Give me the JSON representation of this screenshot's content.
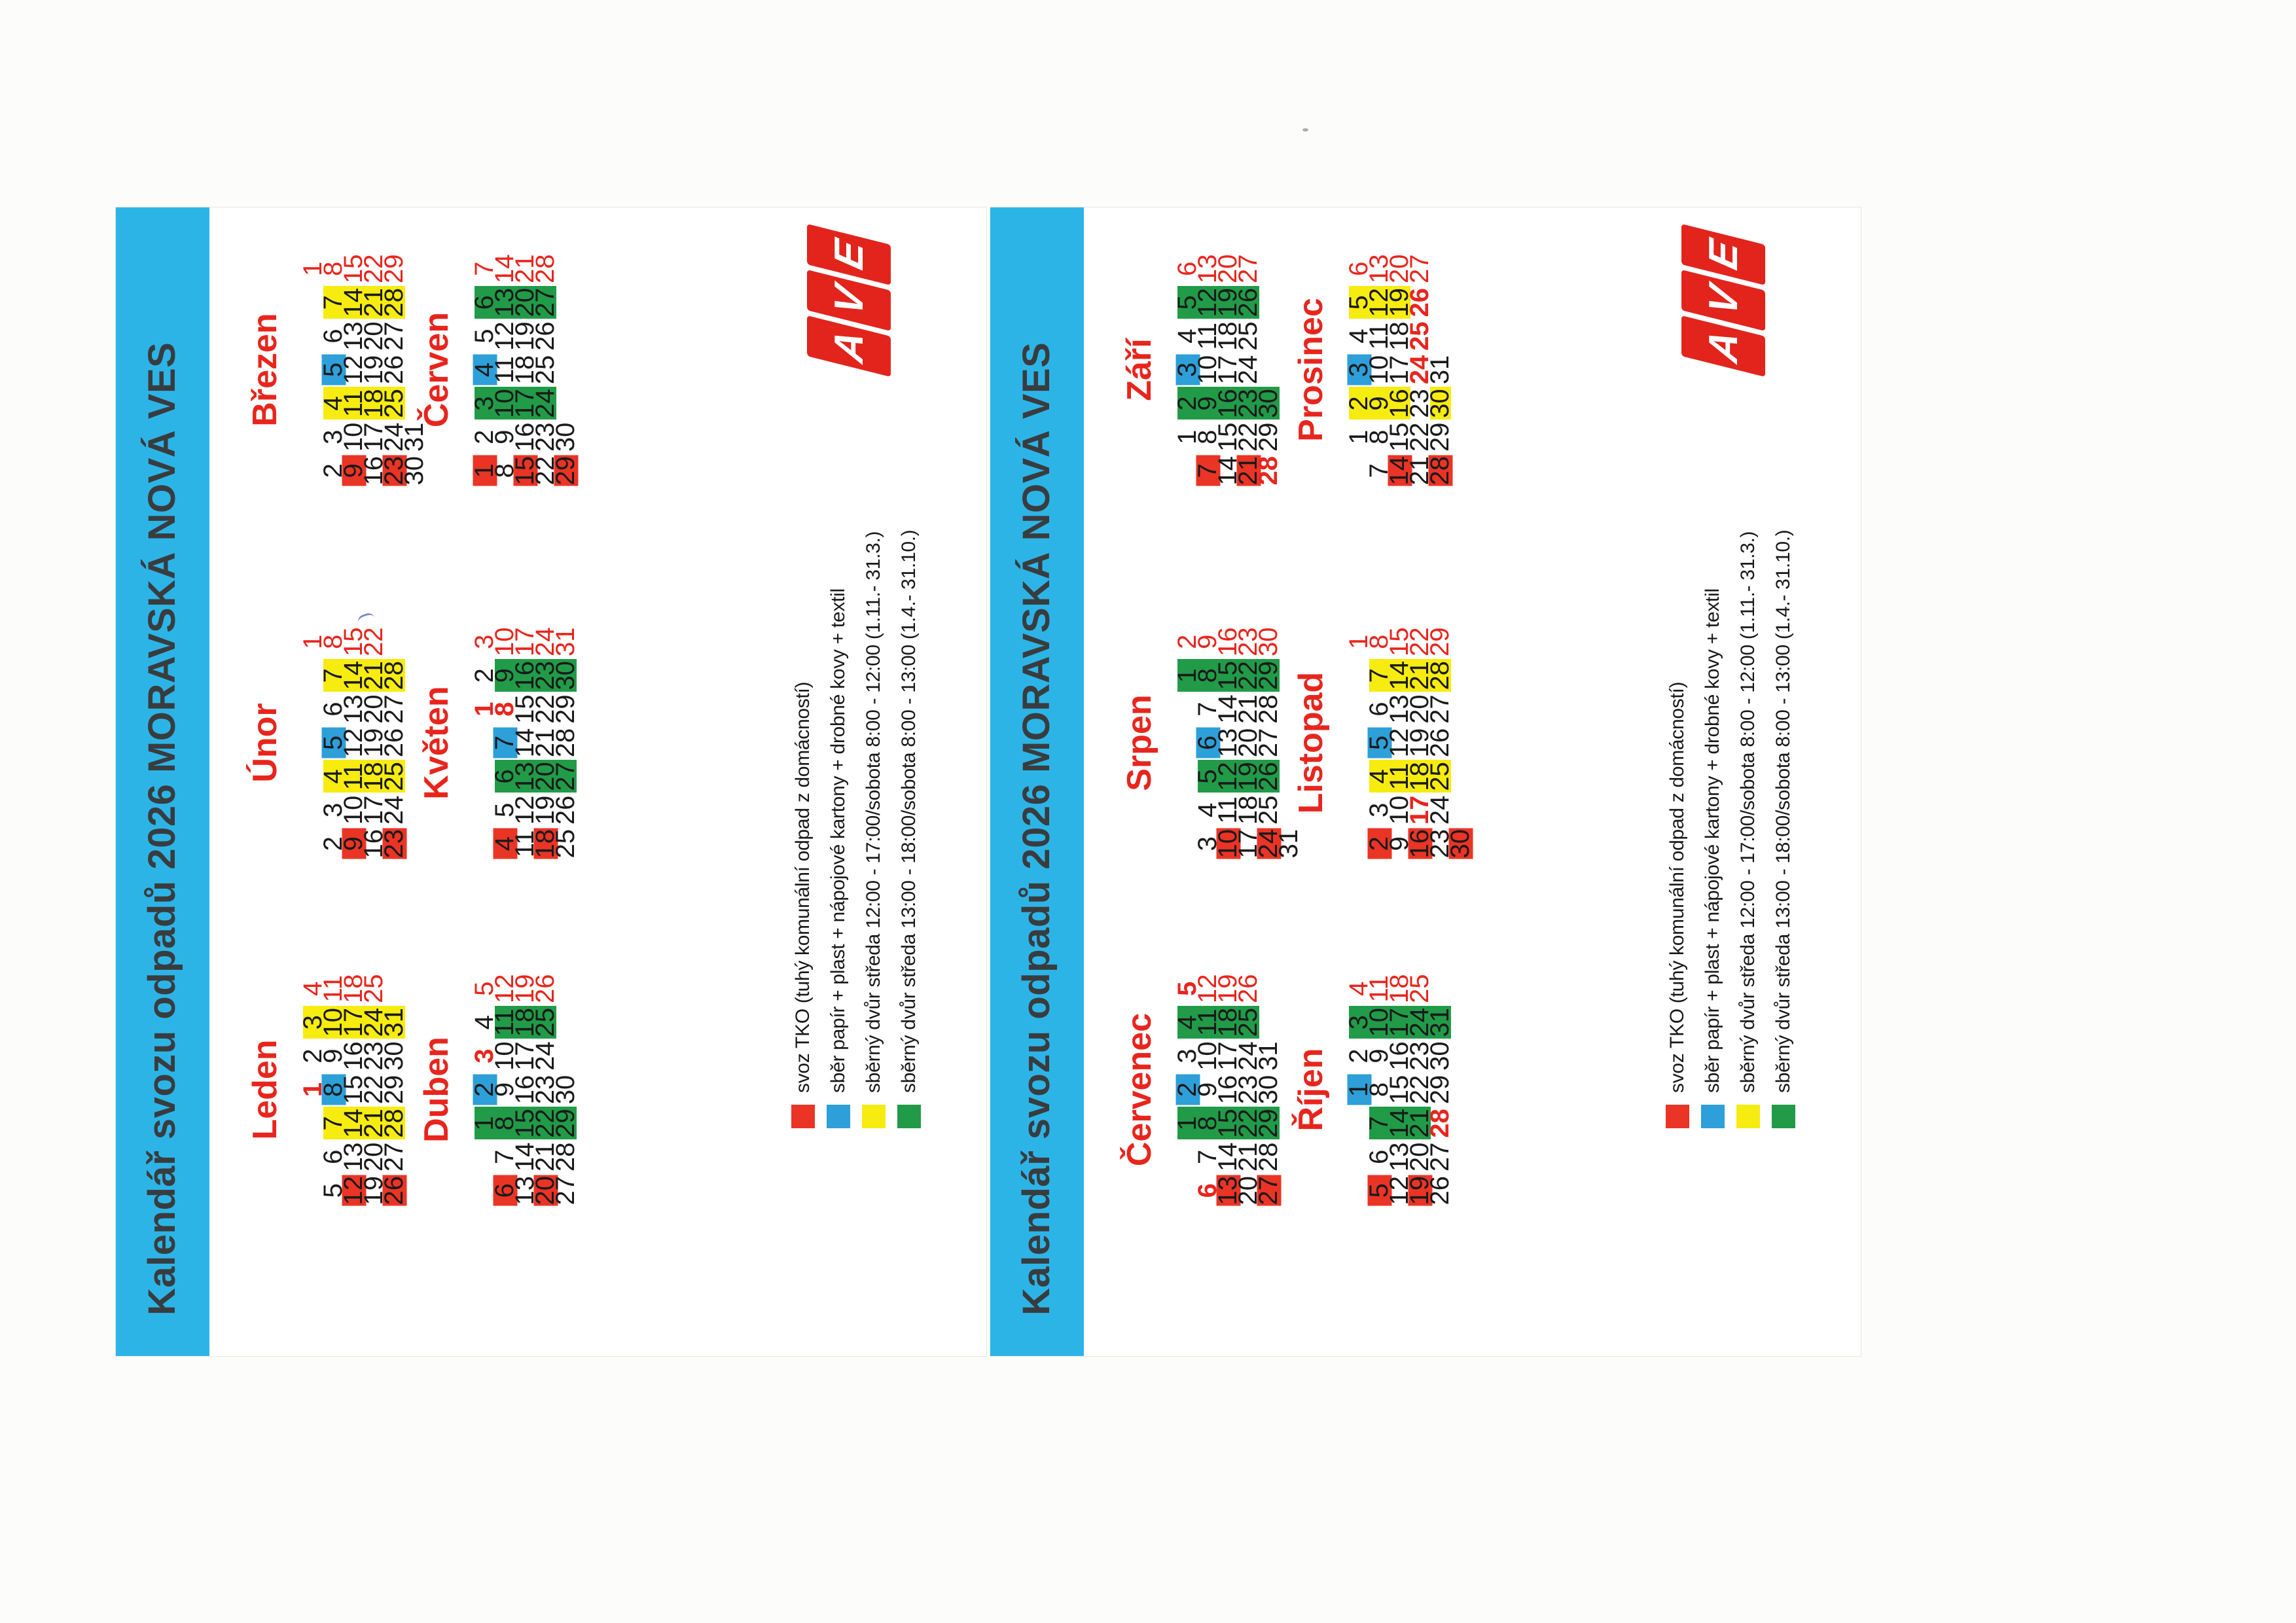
{
  "title": "Kalendář svozu odpadů 2026 MORAVSKÁ NOVÁ VES",
  "colors": {
    "title_bar": "#2db4e7",
    "red_accent": "#e8251d",
    "red_bg": "#ea3425",
    "blue_bg": "#2d9fd9",
    "yellow_bg": "#f7ec0f",
    "green_bg": "#219b48"
  },
  "logo": {
    "letters": [
      "A",
      "V",
      "E"
    ],
    "color": "#e2241c"
  },
  "legend": [
    {
      "key": "R",
      "color": "#ea3425",
      "label": "svoz TKO (tuhý komunální odpad z domácností)"
    },
    {
      "key": "B",
      "color": "#2d9fd9",
      "label": "sběr papír + plast + nápojové kartony + drobné kovy + textil"
    },
    {
      "key": "Y",
      "color": "#f7ec0f",
      "label": "sběrný dvůr středa 12:00 - 17:00/sobota 8:00 - 12:00 (1.11.- 31.3.)"
    },
    {
      "key": "G",
      "color": "#219b48",
      "label": "sběrný dvůr středa 13:00 - 18:00/sobota 8:00 - 13:00 (1.4.- 31.10.)"
    }
  ],
  "cards": [
    {
      "months": [
        "Leden",
        "Únor",
        "Březen",
        "Duben",
        "Květen",
        "Červen"
      ]
    },
    {
      "months": [
        "Červenec",
        "Srpen",
        "Září",
        "Říjen",
        "Listopad",
        "Prosinec"
      ]
    }
  ],
  "cell_flags": {
    "r": "sunday-red-text",
    "h": "holiday-red-bold",
    "R": "svoz-TKO",
    "B": "sber-papir-plast",
    "Y": "sberny-dvur-zima",
    "G": "sberny-dvur-leto"
  },
  "months": {
    "Leden": {
      "weeks": [
        [
          "",
          "",
          "",
          "1h",
          "2",
          "3Y",
          "4r"
        ],
        [
          "5",
          "6",
          "7Y",
          "8B",
          "9",
          "10Y",
          "11r"
        ],
        [
          "12R",
          "13",
          "14Y",
          "15",
          "16",
          "17Y",
          "18r"
        ],
        [
          "19",
          "20",
          "21Y",
          "22",
          "23",
          "24Y",
          "25r"
        ],
        [
          "26R",
          "27",
          "28Y",
          "29",
          "30",
          "31Y",
          ""
        ]
      ]
    },
    "Únor": {
      "weeks": [
        [
          "",
          "",
          "",
          "",
          "",
          "",
          "1r"
        ],
        [
          "2",
          "3",
          "4Y",
          "5B",
          "6",
          "7Y",
          "8r"
        ],
        [
          "9R",
          "10",
          "11Y",
          "12",
          "13",
          "14Y",
          "15r"
        ],
        [
          "16",
          "17",
          "18Y",
          "19",
          "20",
          "21Y",
          "22r"
        ],
        [
          "23R",
          "24",
          "25Y",
          "26",
          "27",
          "28Y",
          ""
        ]
      ]
    },
    "Březen": {
      "weeks": [
        [
          "",
          "",
          "",
          "",
          "",
          "",
          "1r"
        ],
        [
          "2",
          "3",
          "4Y",
          "5B",
          "6",
          "7Y",
          "8r"
        ],
        [
          "9R",
          "10",
          "11Y",
          "12",
          "13",
          "14Y",
          "15r"
        ],
        [
          "16",
          "17",
          "18Y",
          "19",
          "20",
          "21Y",
          "22r"
        ],
        [
          "23R",
          "24",
          "25Y",
          "26",
          "27",
          "28Y",
          "29r"
        ],
        [
          "30",
          "31",
          "",
          "",
          "",
          "",
          ""
        ]
      ]
    },
    "Duben": {
      "weeks": [
        [
          "",
          "",
          "1G",
          "2B",
          "3h",
          "4",
          "5r"
        ],
        [
          "6R",
          "7",
          "8G",
          "9",
          "10",
          "11G",
          "12r"
        ],
        [
          "13",
          "14",
          "15G",
          "16",
          "17",
          "18G",
          "19r"
        ],
        [
          "20R",
          "21",
          "22G",
          "23",
          "24",
          "25G",
          "26r"
        ],
        [
          "27",
          "28",
          "29G",
          "30",
          "",
          "",
          ""
        ]
      ]
    },
    "Květen": {
      "weeks": [
        [
          "",
          "",
          "",
          "",
          "1h",
          "2",
          "3r"
        ],
        [
          "4R",
          "5",
          "6G",
          "7B",
          "8h",
          "9G",
          "10r"
        ],
        [
          "11",
          "12",
          "13G",
          "14",
          "15",
          "16G",
          "17r"
        ],
        [
          "18R",
          "19",
          "20G",
          "21",
          "22",
          "23G",
          "24r"
        ],
        [
          "25",
          "26",
          "27G",
          "28",
          "29",
          "30G",
          "31r"
        ]
      ]
    },
    "Červen": {
      "weeks": [
        [
          "1R",
          "2",
          "3G",
          "4B",
          "5",
          "6G",
          "7r"
        ],
        [
          "8",
          "9",
          "10G",
          "11",
          "12",
          "13G",
          "14r"
        ],
        [
          "15R",
          "16",
          "17G",
          "18",
          "19",
          "20G",
          "21r"
        ],
        [
          "22",
          "23",
          "24G",
          "25",
          "26",
          "27G",
          "28r"
        ],
        [
          "29R",
          "30",
          "",
          "",
          "",
          "",
          ""
        ]
      ]
    },
    "Červenec": {
      "weeks": [
        [
          "",
          "",
          "1G",
          "2B",
          "3",
          "4G",
          "5h"
        ],
        [
          "6h",
          "7",
          "8G",
          "9",
          "10",
          "11G",
          "12r"
        ],
        [
          "13R",
          "14",
          "15G",
          "16",
          "17",
          "18G",
          "19r"
        ],
        [
          "20",
          "21",
          "22G",
          "23",
          "24",
          "25G",
          "26r"
        ],
        [
          "27R",
          "28",
          "29G",
          "30",
          "31",
          "",
          ""
        ]
      ]
    },
    "Srpen": {
      "weeks": [
        [
          "",
          "",
          "",
          "",
          "",
          "1G",
          "2r"
        ],
        [
          "3",
          "4",
          "5G",
          "6B",
          "7",
          "8G",
          "9r"
        ],
        [
          "10R",
          "11",
          "12G",
          "13",
          "14",
          "15G",
          "16r"
        ],
        [
          "17",
          "18",
          "19G",
          "20",
          "21",
          "22G",
          "23r"
        ],
        [
          "24R",
          "25",
          "26G",
          "27",
          "28",
          "29G",
          "30r"
        ],
        [
          "31",
          "",
          "",
          "",
          "",
          "",
          ""
        ]
      ]
    },
    "Září": {
      "weeks": [
        [
          "",
          "1",
          "2G",
          "3B",
          "4",
          "5G",
          "6r"
        ],
        [
          "7R",
          "8",
          "9G",
          "10",
          "11",
          "12G",
          "13r"
        ],
        [
          "14",
          "15",
          "16G",
          "17",
          "18",
          "19G",
          "20r"
        ],
        [
          "21R",
          "22",
          "23G",
          "24",
          "25",
          "26G",
          "27r"
        ],
        [
          "28h",
          "29",
          "30G",
          "",
          "",
          "",
          ""
        ]
      ]
    },
    "Říjen": {
      "weeks": [
        [
          "",
          "",
          "",
          "1B",
          "2",
          "3G",
          "4r"
        ],
        [
          "5R",
          "6",
          "7G",
          "8",
          "9",
          "10G",
          "11r"
        ],
        [
          "12",
          "13",
          "14G",
          "15",
          "16",
          "17G",
          "18r"
        ],
        [
          "19R",
          "20",
          "21G",
          "22",
          "23",
          "24G",
          "25r"
        ],
        [
          "26",
          "27",
          "28h",
          "29",
          "30",
          "31G",
          ""
        ]
      ]
    },
    "Listopad": {
      "weeks": [
        [
          "",
          "",
          "",
          "",
          "",
          "",
          "1r"
        ],
        [
          "2R",
          "3",
          "4Y",
          "5B",
          "6",
          "7Y",
          "8r"
        ],
        [
          "9",
          "10",
          "11Y",
          "12",
          "13",
          "14Y",
          "15r"
        ],
        [
          "16R",
          "17h",
          "18Y",
          "19",
          "20",
          "21Y",
          "22r"
        ],
        [
          "23",
          "24",
          "25Y",
          "26",
          "27",
          "28Y",
          "29r"
        ],
        [
          "30R",
          "",
          "",
          "",
          "",
          "",
          ""
        ]
      ]
    },
    "Prosinec": {
      "weeks": [
        [
          "",
          "1",
          "2Y",
          "3B",
          "4",
          "5Y",
          "6r"
        ],
        [
          "7",
          "8",
          "9Y",
          "10",
          "11",
          "12Y",
          "13r"
        ],
        [
          "14R",
          "15",
          "16Y",
          "17",
          "18",
          "19Y",
          "20r"
        ],
        [
          "21",
          "22",
          "23",
          "24h",
          "25h",
          "26h",
          "27r"
        ],
        [
          "28R",
          "29",
          "30Y",
          "31",
          "",
          "",
          ""
        ]
      ]
    }
  }
}
